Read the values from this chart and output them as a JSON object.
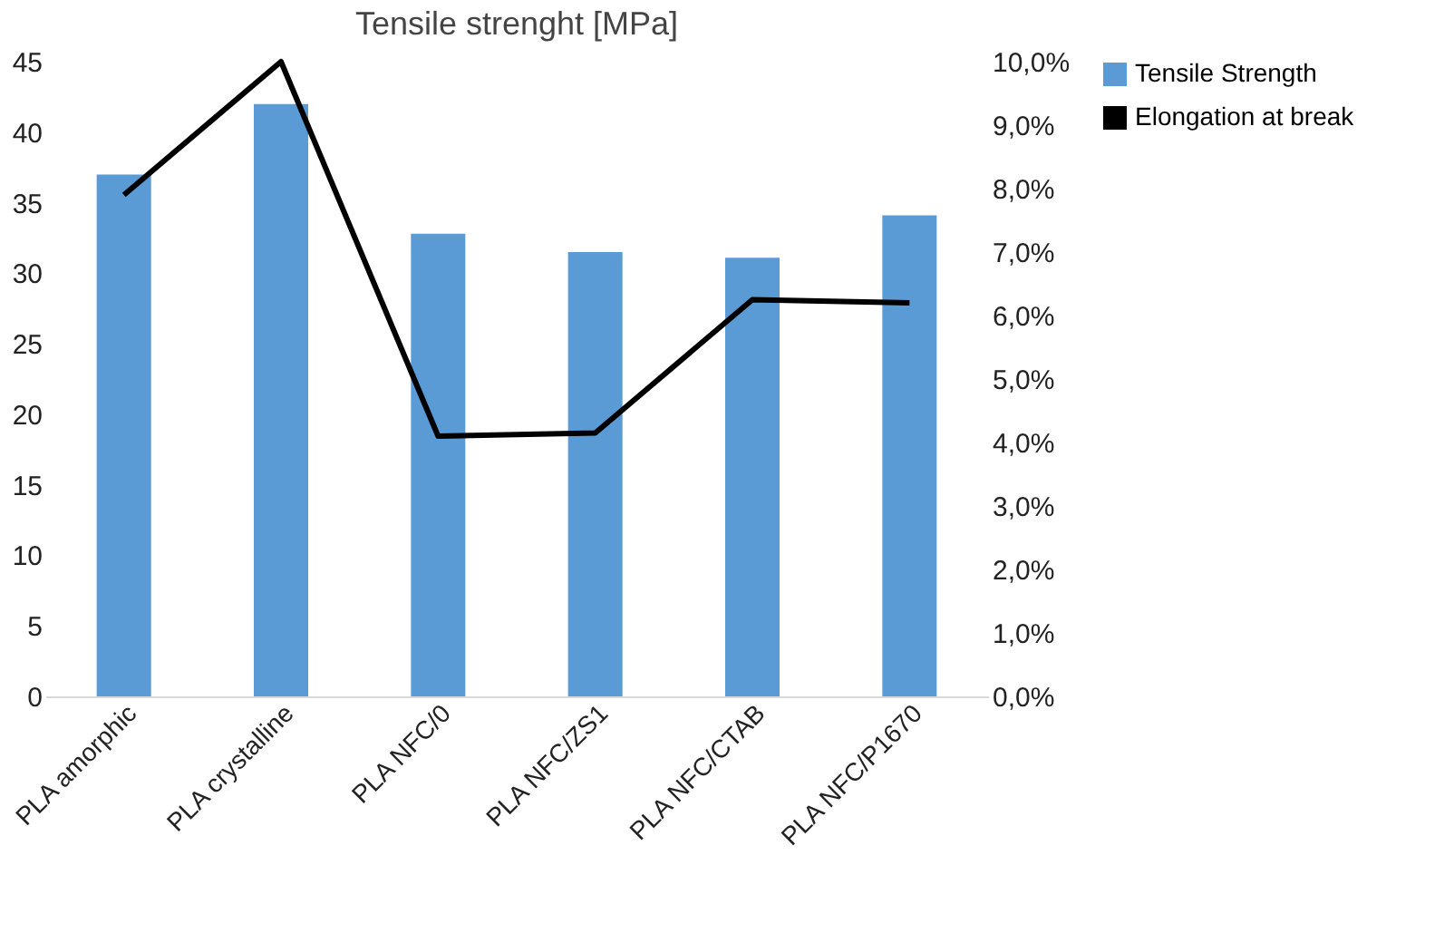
{
  "chart_data": {
    "type": "bar",
    "title": "Tensile strenght [MPa]",
    "categories": [
      "PLA amorphic",
      "PLA crystalline",
      "PLA NFC/0",
      "PLA NFC/ZS1",
      "PLA NFC/CTAB",
      "PLA NFC/P1670"
    ],
    "series": [
      {
        "name": "Tensile Strength",
        "color": "#5b9bd5",
        "values": [
          37,
          42,
          32.8,
          31.5,
          31.1,
          34.1
        ]
      },
      {
        "name": "Elongation at break",
        "color": "#000000",
        "type": "line",
        "axis": "y2",
        "values": [
          7.9,
          10,
          4.1,
          4.15,
          6.25,
          6.2
        ]
      }
    ],
    "ylim": [
      0,
      45
    ],
    "yticks": [
      0,
      5,
      10,
      15,
      20,
      25,
      30,
      35,
      40,
      45
    ],
    "y2lim": [
      0,
      10
    ],
    "y2ticks": [
      {
        "value": 0,
        "label": "0,0%"
      },
      {
        "value": 1,
        "label": "1,0%"
      },
      {
        "value": 2,
        "label": "2,0%"
      },
      {
        "value": 3,
        "label": "3,0%"
      },
      {
        "value": 4,
        "label": "4,0%"
      },
      {
        "value": 5,
        "label": "5,0%"
      },
      {
        "value": 6,
        "label": "6,0%"
      },
      {
        "value": 7,
        "label": "7,0%"
      },
      {
        "value": 8,
        "label": "8,0%"
      },
      {
        "value": 9,
        "label": "9,0%"
      },
      {
        "value": 10,
        "label": "10,0%"
      }
    ],
    "grid": false,
    "legend": "right",
    "marker": "none",
    "line_style": "solid"
  }
}
